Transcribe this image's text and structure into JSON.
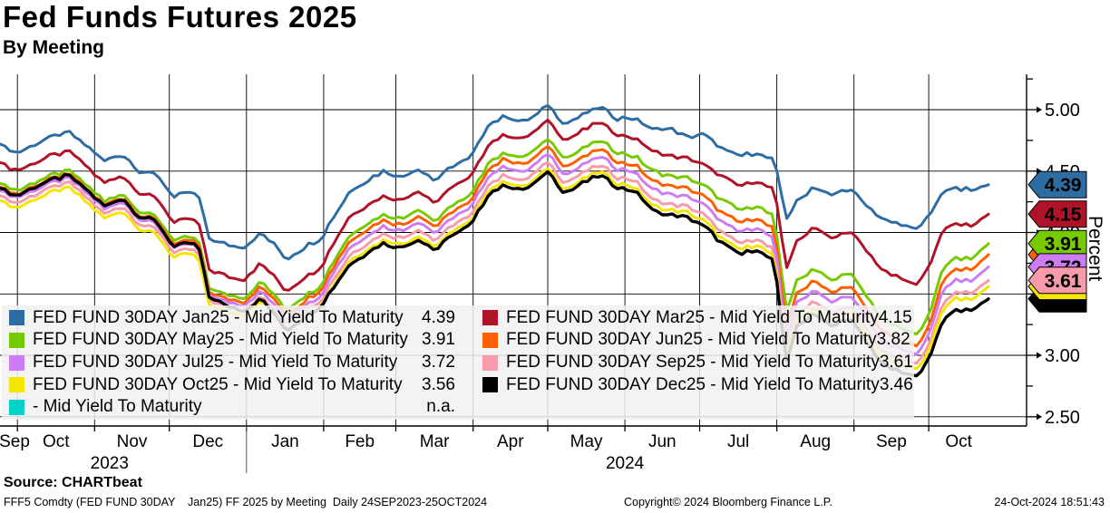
{
  "header": {
    "title": "Fed Funds Futures 2025",
    "subtitle": "By Meeting"
  },
  "footer": {
    "source": "Source: CHARTbeat",
    "description": "FFF5 Comdty (FED FUND 30DAY    Jan25) FF 2025 by Meeting  Daily 24SEP2023-25OCT2024",
    "copyright": "Copyright© 2024 Bloomberg Finance L.P.",
    "datetime": "24-Oct-2024 18:51:43"
  },
  "chart_data": {
    "type": "line",
    "title": "Fed Funds Futures 2025 - By Meeting",
    "ylabel": "Percent",
    "x_start": "24SEP2023",
    "x_end": "25OCT2024",
    "grid": true,
    "legend_position": "bottom-left-overlay",
    "y_axis": {
      "major_ticks": [
        {
          "value": 5.0,
          "label": "5.00"
        },
        {
          "value": 4.5,
          "label": "4.50"
        },
        {
          "value": 4.0,
          "label": "4.00"
        },
        {
          "value": 3.5,
          "label": "3.50"
        },
        {
          "value": 3.0,
          "label": "3.00"
        },
        {
          "value": 2.5,
          "label": "2.50"
        }
      ],
      "minor_tick_values": [
        5.25,
        4.75,
        4.25,
        3.75,
        3.25,
        2.75
      ]
    },
    "x_axis": {
      "month_labels": [
        "Sep",
        "Oct",
        "Nov",
        "Dec",
        "Jan",
        "Feb",
        "Mar",
        "Apr",
        "May",
        "Jun",
        "Jul",
        "Aug",
        "Sep",
        "Oct"
      ],
      "month_boundary_days": [
        0,
        7,
        38,
        68,
        99,
        130,
        159,
        190,
        220,
        251,
        281,
        312,
        343,
        373,
        397
      ],
      "year_divider_day": 99,
      "year_labels": [
        {
          "label": "2023",
          "x_day": 44
        },
        {
          "label": "2024",
          "x_day": 251
        }
      ]
    },
    "anchor_days": [
      0,
      7,
      14,
      21,
      28,
      35,
      42,
      49,
      56,
      63,
      70,
      77,
      80,
      84,
      91,
      98,
      105,
      112,
      115,
      122,
      129,
      133,
      140,
      147,
      154,
      161,
      168,
      175,
      182,
      189,
      196,
      203,
      210,
      217,
      220,
      227,
      234,
      241,
      248,
      255,
      262,
      269,
      276,
      283,
      290,
      297,
      304,
      311,
      314,
      316,
      320,
      327,
      334,
      341,
      348,
      355,
      362,
      367,
      373,
      378,
      383,
      390,
      397
    ],
    "series": [
      {
        "id": "jan25",
        "label": "FED FUND 30DAY Jan25 - Mid Yield To Maturity",
        "last_value": "4.39",
        "color": "#2e6da4",
        "badge_text_color": "#ffffff",
        "line_width": 3,
        "values": [
          4.72,
          4.65,
          4.72,
          4.78,
          4.81,
          4.7,
          4.58,
          4.64,
          4.5,
          4.47,
          4.29,
          4.33,
          4.28,
          3.95,
          3.9,
          3.88,
          4.0,
          3.86,
          3.78,
          3.88,
          3.95,
          4.1,
          4.32,
          4.42,
          4.5,
          4.45,
          4.52,
          4.42,
          4.55,
          4.6,
          4.88,
          4.95,
          4.9,
          4.98,
          5.04,
          4.88,
          4.96,
          5.02,
          4.93,
          4.93,
          4.84,
          4.85,
          4.78,
          4.8,
          4.68,
          4.62,
          4.65,
          4.58,
          4.3,
          4.12,
          4.25,
          4.38,
          4.3,
          4.36,
          4.22,
          4.1,
          4.06,
          4.03,
          4.12,
          4.32,
          4.37,
          4.34,
          4.39
        ]
      },
      {
        "id": "mar25",
        "label": "FED FUND 30DAY Mar25 - Mid Yield To Maturity",
        "last_value": "4.15",
        "color": "#b01228",
        "badge_text_color": "#ffffff",
        "line_width": 3,
        "values": [
          4.57,
          4.5,
          4.57,
          4.63,
          4.66,
          4.53,
          4.4,
          4.47,
          4.32,
          4.28,
          4.08,
          4.12,
          4.06,
          3.7,
          3.64,
          3.62,
          3.75,
          3.6,
          3.52,
          3.63,
          3.72,
          3.88,
          4.12,
          4.22,
          4.3,
          4.26,
          4.34,
          4.24,
          4.38,
          4.44,
          4.72,
          4.8,
          4.76,
          4.85,
          4.92,
          4.75,
          4.83,
          4.9,
          4.8,
          4.77,
          4.66,
          4.62,
          4.6,
          4.55,
          4.45,
          4.38,
          4.42,
          4.35,
          3.95,
          3.72,
          3.92,
          4.05,
          3.95,
          4.02,
          3.85,
          3.68,
          3.62,
          3.57,
          3.7,
          4.0,
          4.08,
          4.05,
          4.15
        ]
      },
      {
        "id": "may25",
        "label": "FED FUND 30DAY May25 - Mid Yield To Maturity",
        "last_value": "3.91",
        "color": "#77c900",
        "badge_text_color": "#000000",
        "line_width": 3,
        "values": [
          4.4,
          4.34,
          4.41,
          4.47,
          4.5,
          4.38,
          4.25,
          4.32,
          4.17,
          4.13,
          3.93,
          3.97,
          3.91,
          3.55,
          3.49,
          3.47,
          3.6,
          3.45,
          3.37,
          3.48,
          3.57,
          3.73,
          3.97,
          4.07,
          4.15,
          4.11,
          4.19,
          4.09,
          4.23,
          4.29,
          4.57,
          4.65,
          4.61,
          4.7,
          4.77,
          4.6,
          4.68,
          4.75,
          4.65,
          4.62,
          4.5,
          4.46,
          4.44,
          4.38,
          4.26,
          4.18,
          4.22,
          4.12,
          3.65,
          3.38,
          3.6,
          3.72,
          3.6,
          3.68,
          3.48,
          3.28,
          3.22,
          3.16,
          3.3,
          3.68,
          3.8,
          3.78,
          3.91
        ]
      },
      {
        "id": "jun25",
        "label": "FED FUND 30DAY Jun25 - Mid Yield To Maturity",
        "last_value": "3.82",
        "color": "#ff5f00",
        "badge_text_color": "#000000",
        "line_width": 3,
        "values": [
          4.37,
          4.31,
          4.38,
          4.44,
          4.47,
          4.35,
          4.22,
          4.29,
          4.14,
          4.1,
          3.9,
          3.94,
          3.88,
          3.52,
          3.46,
          3.44,
          3.56,
          3.41,
          3.33,
          3.44,
          3.53,
          3.69,
          3.92,
          4.02,
          4.1,
          4.06,
          4.14,
          4.04,
          4.18,
          4.24,
          4.52,
          4.6,
          4.55,
          4.64,
          4.71,
          4.53,
          4.61,
          4.68,
          4.58,
          4.55,
          4.42,
          4.38,
          4.36,
          4.29,
          4.16,
          4.08,
          4.12,
          4.02,
          3.52,
          3.26,
          3.5,
          3.62,
          3.5,
          3.58,
          3.38,
          3.18,
          3.12,
          3.07,
          3.21,
          3.58,
          3.71,
          3.69,
          3.82
        ]
      },
      {
        "id": "jul25",
        "label": "FED FUND 30DAY Jul25 - Mid Yield To Maturity",
        "last_value": "3.72",
        "color": "#ce7cf4",
        "badge_text_color": "#000000",
        "line_width": 3,
        "values": [
          4.34,
          4.28,
          4.35,
          4.41,
          4.44,
          4.32,
          4.19,
          4.26,
          4.11,
          4.07,
          3.87,
          3.91,
          3.85,
          3.49,
          3.43,
          3.41,
          3.52,
          3.37,
          3.29,
          3.4,
          3.49,
          3.64,
          3.87,
          3.97,
          4.05,
          4.01,
          4.09,
          3.99,
          4.13,
          4.19,
          4.46,
          4.54,
          4.49,
          4.58,
          4.65,
          4.47,
          4.55,
          4.62,
          4.52,
          4.49,
          4.35,
          4.31,
          4.29,
          4.22,
          4.08,
          4.0,
          4.04,
          3.94,
          3.43,
          3.16,
          3.42,
          3.54,
          3.42,
          3.5,
          3.3,
          3.1,
          3.05,
          3.0,
          3.14,
          3.5,
          3.62,
          3.6,
          3.72
        ]
      },
      {
        "id": "sep25",
        "label": "FED FUND 30DAY Sep25 - Mid Yield To Maturity",
        "last_value": "3.61",
        "color": "#f79aa9",
        "badge_text_color": "#000000",
        "line_width": 3,
        "values": [
          4.3,
          4.24,
          4.31,
          4.37,
          4.4,
          4.28,
          4.15,
          4.22,
          4.07,
          4.03,
          3.83,
          3.87,
          3.81,
          3.45,
          3.39,
          3.37,
          3.48,
          3.33,
          3.25,
          3.36,
          3.45,
          3.59,
          3.81,
          3.91,
          3.99,
          3.95,
          4.03,
          3.93,
          4.07,
          4.13,
          4.39,
          4.47,
          4.42,
          4.51,
          4.58,
          4.4,
          4.48,
          4.55,
          4.45,
          4.42,
          4.27,
          4.23,
          4.21,
          4.14,
          4.0,
          3.91,
          3.95,
          3.85,
          3.34,
          3.06,
          3.33,
          3.45,
          3.33,
          3.41,
          3.21,
          3.02,
          2.97,
          2.93,
          3.06,
          3.4,
          3.52,
          3.5,
          3.61
        ]
      },
      {
        "id": "oct25",
        "label": "FED FUND 30DAY Oct25 - Mid Yield To Maturity",
        "last_value": "3.56",
        "color": "#f6e500",
        "badge_text_color": "#000000",
        "line_width": 3,
        "values": [
          4.26,
          4.2,
          4.27,
          4.33,
          4.36,
          4.24,
          4.11,
          4.18,
          4.03,
          3.99,
          3.79,
          3.83,
          3.77,
          3.41,
          3.35,
          3.33,
          3.44,
          3.29,
          3.21,
          3.32,
          3.41,
          3.55,
          3.76,
          3.86,
          3.94,
          3.9,
          3.98,
          3.88,
          4.02,
          4.08,
          4.34,
          4.42,
          4.37,
          4.46,
          4.53,
          4.35,
          4.43,
          4.5,
          4.4,
          4.37,
          4.22,
          4.18,
          4.16,
          4.09,
          3.95,
          3.86,
          3.9,
          3.8,
          3.29,
          3.01,
          3.28,
          3.4,
          3.28,
          3.36,
          3.16,
          2.97,
          2.92,
          2.88,
          3.01,
          3.35,
          3.47,
          3.45,
          3.56
        ]
      },
      {
        "id": "dec25",
        "label": "FED FUND 30DAY Dec25 - Mid Yield To Maturity",
        "last_value": "3.46",
        "color": "#000000",
        "badge_text_color": "#ffffff",
        "line_width": 3.4,
        "values": [
          4.36,
          4.3,
          4.37,
          4.43,
          4.46,
          4.34,
          4.21,
          4.28,
          4.13,
          4.09,
          3.88,
          3.92,
          3.86,
          3.48,
          3.4,
          3.37,
          3.46,
          3.29,
          3.2,
          3.31,
          3.4,
          3.53,
          3.73,
          3.83,
          3.91,
          3.87,
          3.95,
          3.85,
          3.99,
          4.05,
          4.31,
          4.39,
          4.34,
          4.43,
          4.5,
          4.32,
          4.4,
          4.47,
          4.37,
          4.34,
          4.18,
          4.14,
          4.12,
          4.05,
          3.91,
          3.82,
          3.86,
          3.76,
          3.24,
          2.96,
          3.23,
          3.35,
          3.23,
          3.31,
          3.11,
          2.92,
          2.86,
          2.82,
          2.95,
          3.26,
          3.38,
          3.36,
          3.46
        ]
      }
    ],
    "na_series": {
      "id": "na",
      "label": "- Mid Yield To Maturity",
      "last_value": "n.a.",
      "color": "#00d2c8"
    },
    "legend_order": [
      "jan25",
      "mar25",
      "may25",
      "jun25",
      "jul25",
      "sep25",
      "oct25",
      "dec25",
      "na"
    ],
    "badge_draw_order": [
      "jan25",
      "mar25",
      "jun25",
      "may25",
      "jul25",
      "dec25",
      "oct25",
      "sep25"
    ]
  }
}
